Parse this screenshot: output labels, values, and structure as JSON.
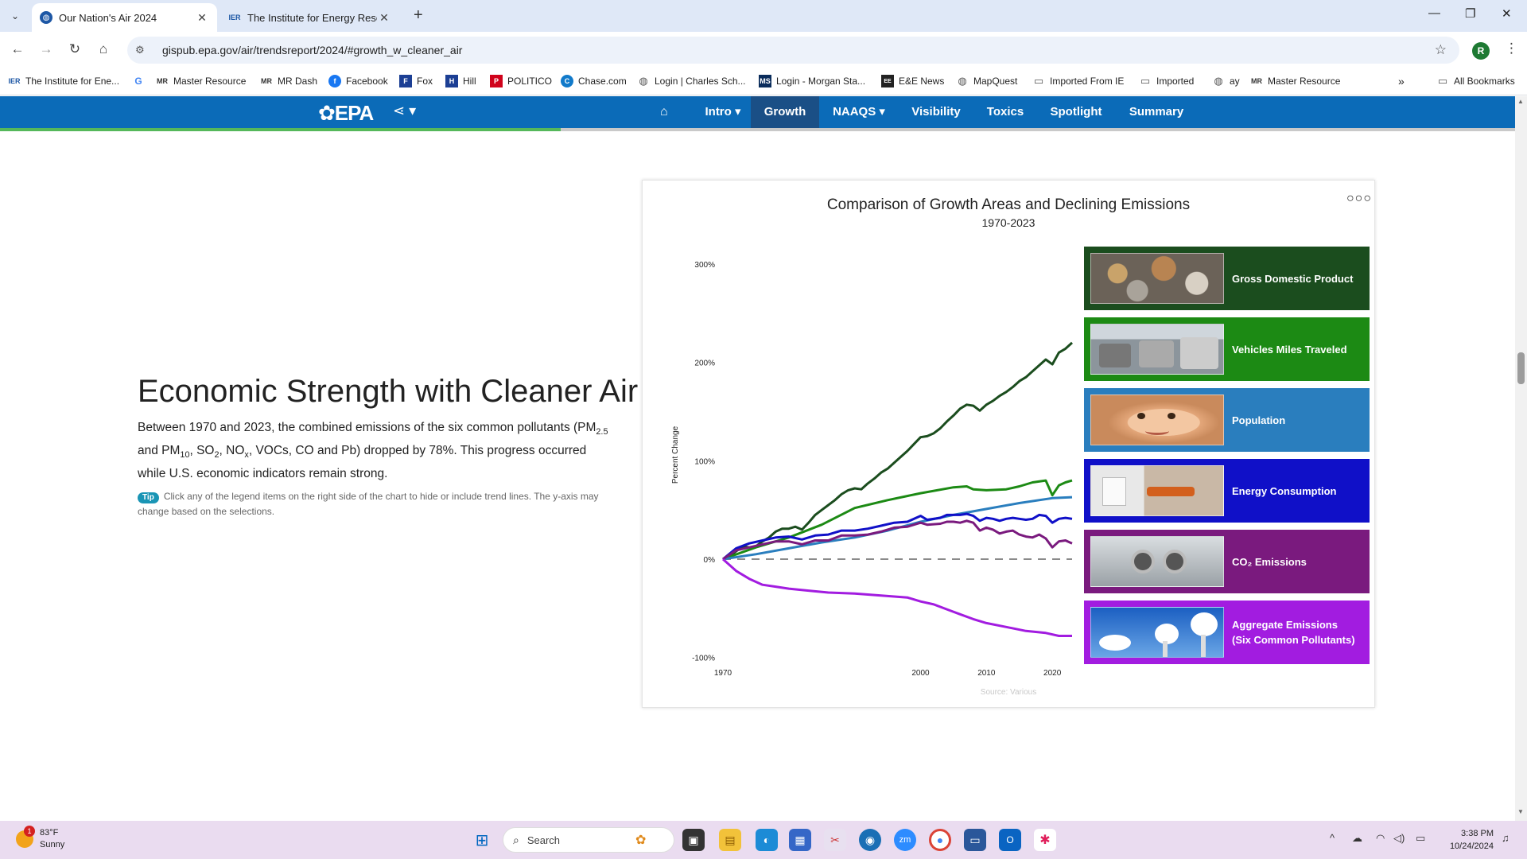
{
  "browser": {
    "tabs": [
      {
        "title": "Our Nation's Air 2024",
        "favicon": "globe-icon",
        "active": true
      },
      {
        "title": "The Institute for Energy Research",
        "favicon": "IER",
        "active": false
      }
    ],
    "url": "gispub.epa.gov/air/trendsreport/2024/#growth_w_cleaner_air",
    "profile_initial": "R",
    "bookmarks": [
      {
        "label": "The Institute for Ene...",
        "icon": "IER"
      },
      {
        "label": "",
        "icon": "G"
      },
      {
        "label": "Master Resource",
        "icon": "MR"
      },
      {
        "label": "MR Dash",
        "icon": "MR"
      },
      {
        "label": "Facebook",
        "icon": "f"
      },
      {
        "label": "Fox",
        "icon": "F"
      },
      {
        "label": "Hill",
        "icon": "H"
      },
      {
        "label": "POLITICO",
        "icon": "P"
      },
      {
        "label": "Chase.com",
        "icon": "C"
      },
      {
        "label": "Login | Charles Sch...",
        "icon": "globe"
      },
      {
        "label": "Login - Morgan Sta...",
        "icon": "MS"
      },
      {
        "label": "E&E News",
        "icon": "EE"
      },
      {
        "label": "MapQuest",
        "icon": "globe"
      },
      {
        "label": "Imported From IE",
        "icon": "folder"
      },
      {
        "label": "Imported",
        "icon": "folder"
      },
      {
        "label": "ay",
        "icon": "globe"
      },
      {
        "label": "Master Resource",
        "icon": "MR"
      }
    ],
    "all_bookmarks": "All Bookmarks"
  },
  "epa_nav": {
    "logo": "EPA",
    "items": [
      "Intro",
      "Growth",
      "NAAQS",
      "Visibility",
      "Toxics",
      "Spotlight",
      "Summary"
    ],
    "active": "Growth",
    "progress": 0.37
  },
  "content": {
    "heading": "Economic Strength with Cleaner Air",
    "intro_1": "Between 1970 and 2023, the combined emissions of the six common pollutants (PM",
    "sub_25": "2.5",
    "intro_2": " and PM",
    "sub_10": "10",
    "intro_3": ", SO",
    "sub_2": "2",
    "intro_4": ", NO",
    "sub_x": "x",
    "intro_5": ", VOCs, CO and Pb) dropped by 78%. This progress occurred while U.S. economic indicators remain strong.",
    "tip_badge": "Tip",
    "tip_text": "Click any of the legend items on the right side of the chart to hide or include trend lines. The y-axis may change based on the selections."
  },
  "chart_data": {
    "type": "line",
    "title": "Comparison of Growth Areas and Declining Emissions",
    "subtitle": "1970-2023",
    "ylabel": "Percent Change",
    "xlabel": "",
    "xlim": [
      1970,
      2023
    ],
    "ylim": [
      -100,
      330
    ],
    "x_ticks": [
      "1970",
      "2000",
      "2010",
      "2020"
    ],
    "y_ticks": [
      "300%",
      "200%",
      "100%",
      "0%",
      "-100%"
    ],
    "source": "Source: Various",
    "series": [
      {
        "name": "Gross Domestic Product",
        "color": "#1b4d1e",
        "points": [
          [
            1970,
            0
          ],
          [
            1971,
            3
          ],
          [
            1972,
            8
          ],
          [
            1973,
            13
          ],
          [
            1974,
            12
          ],
          [
            1975,
            13
          ],
          [
            1976,
            18
          ],
          [
            1977,
            22
          ],
          [
            1978,
            28
          ],
          [
            1979,
            31
          ],
          [
            1980,
            31
          ],
          [
            1981,
            33
          ],
          [
            1982,
            30
          ],
          [
            1983,
            37
          ],
          [
            1984,
            45
          ],
          [
            1985,
            50
          ],
          [
            1986,
            55
          ],
          [
            1987,
            60
          ],
          [
            1988,
            66
          ],
          [
            1989,
            70
          ],
          [
            1990,
            72
          ],
          [
            1991,
            71
          ],
          [
            1992,
            77
          ],
          [
            1993,
            82
          ],
          [
            1994,
            88
          ],
          [
            1995,
            92
          ],
          [
            1996,
            98
          ],
          [
            1997,
            104
          ],
          [
            1998,
            110
          ],
          [
            1999,
            117
          ],
          [
            2000,
            124
          ],
          [
            2001,
            125
          ],
          [
            2002,
            128
          ],
          [
            2003,
            133
          ],
          [
            2004,
            140
          ],
          [
            2005,
            146
          ],
          [
            2006,
            153
          ],
          [
            2007,
            157
          ],
          [
            2008,
            156
          ],
          [
            2009,
            151
          ],
          [
            2010,
            157
          ],
          [
            2011,
            161
          ],
          [
            2012,
            166
          ],
          [
            2013,
            170
          ],
          [
            2014,
            175
          ],
          [
            2015,
            181
          ],
          [
            2016,
            185
          ],
          [
            2017,
            191
          ],
          [
            2018,
            197
          ],
          [
            2019,
            203
          ],
          [
            2020,
            198
          ],
          [
            2021,
            210
          ],
          [
            2022,
            214
          ],
          [
            2023,
            220
          ]
        ]
      },
      {
        "name": "Vehicles Miles Traveled",
        "color": "#1c8a14",
        "points": [
          [
            1970,
            0
          ],
          [
            1975,
            12
          ],
          [
            1980,
            22
          ],
          [
            1985,
            35
          ],
          [
            1990,
            52
          ],
          [
            1995,
            60
          ],
          [
            2000,
            67
          ],
          [
            2005,
            73
          ],
          [
            2007,
            74
          ],
          [
            2008,
            71
          ],
          [
            2010,
            70
          ],
          [
            2013,
            71
          ],
          [
            2015,
            74
          ],
          [
            2017,
            78
          ],
          [
            2019,
            80
          ],
          [
            2020,
            65
          ],
          [
            2021,
            75
          ],
          [
            2022,
            78
          ],
          [
            2023,
            80
          ]
        ]
      },
      {
        "name": "Population",
        "color": "#2a7ebe",
        "points": [
          [
            1970,
            0
          ],
          [
            1975,
            5
          ],
          [
            1980,
            11
          ],
          [
            1985,
            17
          ],
          [
            1990,
            22
          ],
          [
            1995,
            29
          ],
          [
            2000,
            38
          ],
          [
            2005,
            45
          ],
          [
            2010,
            51
          ],
          [
            2015,
            57
          ],
          [
            2020,
            62
          ],
          [
            2023,
            63
          ]
        ]
      },
      {
        "name": "Energy Consumption",
        "color": "#1010c8",
        "points": [
          [
            1970,
            0
          ],
          [
            1972,
            11
          ],
          [
            1974,
            16
          ],
          [
            1976,
            19
          ],
          [
            1978,
            22
          ],
          [
            1980,
            23
          ],
          [
            1982,
            20
          ],
          [
            1984,
            24
          ],
          [
            1986,
            25
          ],
          [
            1988,
            29
          ],
          [
            1990,
            29
          ],
          [
            1992,
            31
          ],
          [
            1994,
            34
          ],
          [
            1996,
            37
          ],
          [
            1998,
            38
          ],
          [
            2000,
            44
          ],
          [
            2001,
            40
          ],
          [
            2003,
            42
          ],
          [
            2004,
            45
          ],
          [
            2006,
            45
          ],
          [
            2007,
            46
          ],
          [
            2008,
            44
          ],
          [
            2009,
            39
          ],
          [
            2010,
            42
          ],
          [
            2011,
            41
          ],
          [
            2012,
            39
          ],
          [
            2013,
            41
          ],
          [
            2014,
            42
          ],
          [
            2015,
            41
          ],
          [
            2016,
            40
          ],
          [
            2017,
            41
          ],
          [
            2018,
            45
          ],
          [
            2019,
            44
          ],
          [
            2020,
            37
          ],
          [
            2021,
            41
          ],
          [
            2022,
            42
          ],
          [
            2023,
            41
          ]
        ]
      },
      {
        "name": "CO₂ Emissions",
        "color": "#7a1a7e",
        "points": [
          [
            1970,
            0
          ],
          [
            1972,
            9
          ],
          [
            1974,
            12
          ],
          [
            1976,
            15
          ],
          [
            1978,
            18
          ],
          [
            1980,
            18
          ],
          [
            1982,
            15
          ],
          [
            1984,
            19
          ],
          [
            1986,
            19
          ],
          [
            1988,
            24
          ],
          [
            1990,
            24
          ],
          [
            1992,
            25
          ],
          [
            1994,
            28
          ],
          [
            1996,
            32
          ],
          [
            1998,
            33
          ],
          [
            2000,
            37
          ],
          [
            2001,
            35
          ],
          [
            2003,
            36
          ],
          [
            2004,
            38
          ],
          [
            2005,
            38
          ],
          [
            2006,
            37
          ],
          [
            2007,
            39
          ],
          [
            2008,
            37
          ],
          [
            2009,
            29
          ],
          [
            2010,
            32
          ],
          [
            2011,
            30
          ],
          [
            2012,
            26
          ],
          [
            2013,
            28
          ],
          [
            2014,
            29
          ],
          [
            2015,
            25
          ],
          [
            2016,
            23
          ],
          [
            2017,
            22
          ],
          [
            2018,
            25
          ],
          [
            2019,
            21
          ],
          [
            2020,
            12
          ],
          [
            2021,
            18
          ],
          [
            2022,
            19
          ],
          [
            2023,
            16
          ]
        ]
      },
      {
        "name": "Aggregate Emissions (Six Common Pollutants)",
        "color": "#a21ce0",
        "points": [
          [
            1970,
            0
          ],
          [
            1972,
            -12
          ],
          [
            1974,
            -20
          ],
          [
            1976,
            -26
          ],
          [
            1978,
            -28
          ],
          [
            1980,
            -30
          ],
          [
            1983,
            -32
          ],
          [
            1986,
            -34
          ],
          [
            1990,
            -35
          ],
          [
            1994,
            -37
          ],
          [
            1998,
            -39
          ],
          [
            2000,
            -43
          ],
          [
            2002,
            -46
          ],
          [
            2004,
            -51
          ],
          [
            2006,
            -56
          ],
          [
            2008,
            -61
          ],
          [
            2010,
            -65
          ],
          [
            2013,
            -69
          ],
          [
            2016,
            -73
          ],
          [
            2019,
            -75
          ],
          [
            2021,
            -78
          ],
          [
            2023,
            -78
          ]
        ]
      }
    ],
    "legend_placement": "right"
  },
  "legend_tiles": [
    {
      "label": "Gross Domestic Product",
      "bg": "#1b4d1e",
      "image": "coins-image"
    },
    {
      "label": "Vehicles Miles Traveled",
      "bg": "#1c8a14",
      "image": "traffic-image"
    },
    {
      "label": "Population",
      "bg": "#2a7ebe",
      "image": "baby-image"
    },
    {
      "label": "Energy Consumption",
      "bg": "#1010c8",
      "image": "plug-image"
    },
    {
      "label": "CO₂ Emissions",
      "bg": "#7a1a7e",
      "image": "exhaust-image"
    },
    {
      "label": "Aggregate Emissions",
      "label2": "(Six Common Pollutants)",
      "bg": "#a21ce0",
      "image": "smokestack-image"
    }
  ],
  "taskbar": {
    "weather_temp": "83°F",
    "weather_desc": "Sunny",
    "weather_badge": "1",
    "search_placeholder": "Search",
    "time": "3:38 PM",
    "date": "10/24/2024"
  }
}
